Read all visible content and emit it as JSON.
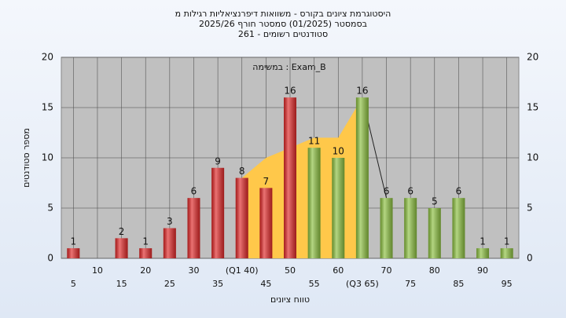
{
  "chart_data": {
    "type": "bar",
    "title": "היסטוגרמת ציונים בקורס - משוואות דיפרנציאליות רגילות מ",
    "subtitle": "בסמסטר  (01/2025)  סמסטר חורף 2025/26",
    "subtitle2": "סטודנטים רשומים - 261",
    "annotation": "במשימה : Exam_B",
    "x_label": "טווח ציונים",
    "y_label": "מספר סטודנטים",
    "categories": [
      "5",
      "10",
      "15",
      "20",
      "25",
      "30",
      "35",
      "(Q1 40)",
      "45",
      "50",
      "55",
      "60",
      "(Q3 65)",
      "70",
      "75",
      "80",
      "85",
      "90",
      "95"
    ],
    "values": [
      1,
      0,
      2,
      1,
      3,
      6,
      9,
      8,
      7,
      16,
      11,
      10,
      16,
      6,
      6,
      5,
      6,
      1,
      1
    ],
    "colors": [
      "#e02828",
      "#e02828",
      "#e02828",
      "#e02828",
      "#e02828",
      "#e02828",
      "#e02828",
      "#e02828",
      "#e02828",
      "#e02828",
      "#8cc040",
      "#8cc040",
      "#8cc040",
      "#8cc040",
      "#8cc040",
      "#8cc040",
      "#8cc040",
      "#8cc040",
      "#8cc040"
    ],
    "area": {
      "color": "#ffc84a",
      "values": [
        null,
        null,
        null,
        null,
        null,
        null,
        null,
        8,
        10,
        11,
        12,
        12,
        16,
        null,
        null,
        null,
        null,
        null,
        null
      ]
    },
    "ylim": [
      0,
      20
    ],
    "yticks": [
      0,
      5,
      10,
      15,
      20
    ],
    "grid": true
  }
}
